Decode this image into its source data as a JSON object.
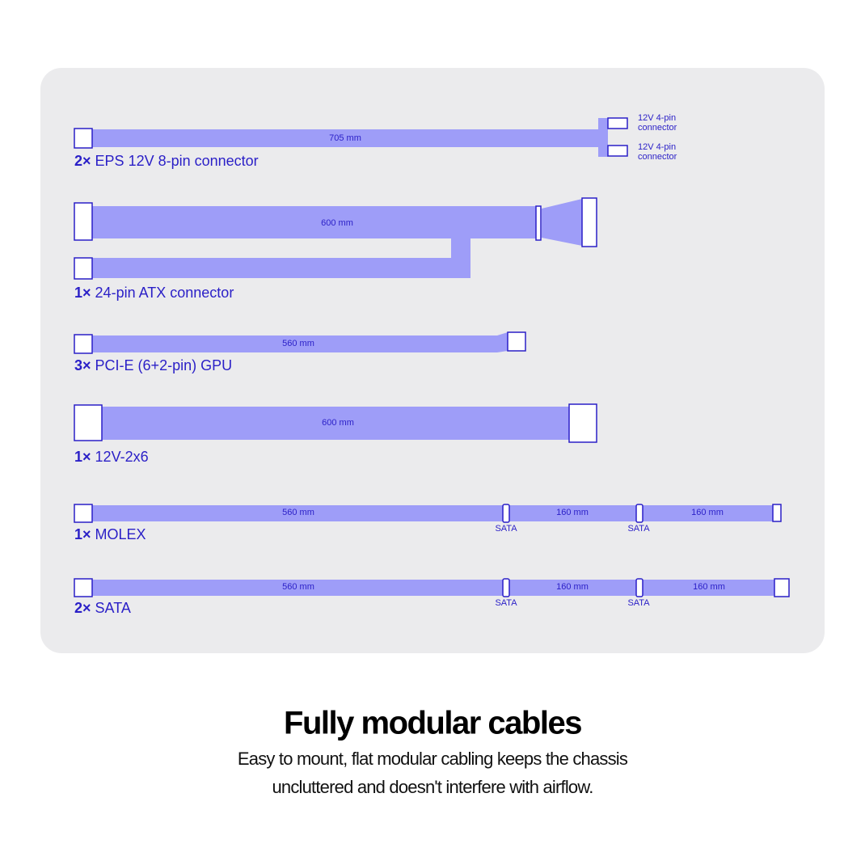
{
  "cables": [
    {
      "count": "2×",
      "name": "EPS 12V 8-pin connector",
      "lengths": [
        "705 mm"
      ],
      "branches": [
        [
          "12V 4-pin",
          "connector"
        ],
        [
          "12V 4-pin",
          "connector"
        ]
      ]
    },
    {
      "count": "1×",
      "name": "24-pin ATX connector",
      "lengths": [
        "600 mm"
      ]
    },
    {
      "count": "3×",
      "name": "PCI-E (6+2-pin) GPU",
      "lengths": [
        "560 mm"
      ]
    },
    {
      "count": "1×",
      "name": "12V-2x6",
      "lengths": [
        "600 mm"
      ]
    },
    {
      "count": "1×",
      "name": "MOLEX",
      "lengths": [
        "560 mm",
        "160 mm",
        "160 mm"
      ],
      "taps": [
        "SATA",
        "SATA"
      ]
    },
    {
      "count": "2×",
      "name": "SATA",
      "lengths": [
        "560 mm",
        "160 mm",
        "160 mm"
      ],
      "taps": [
        "SATA",
        "SATA"
      ]
    }
  ],
  "footer": {
    "title": "Fully modular cables",
    "lines": [
      "Easy to mount, flat modular cabling keeps the chassis",
      "uncluttered and doesn't interfere with airflow."
    ]
  }
}
